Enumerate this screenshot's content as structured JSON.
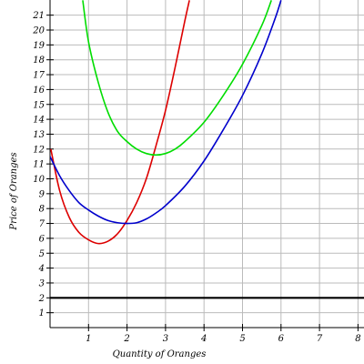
{
  "chart_data": {
    "type": "line",
    "title": "",
    "xlabel": "Quantity of Oranges",
    "ylabel": "Price of Oranges",
    "xlim": [
      0,
      8.1
    ],
    "ylim": [
      0,
      21.2
    ],
    "x_ticks": [
      1,
      2,
      3,
      4,
      5,
      6,
      7,
      8
    ],
    "y_ticks": [
      1,
      2,
      3,
      4,
      5,
      6,
      7,
      8,
      9,
      10,
      11,
      12,
      13,
      14,
      15,
      16,
      17,
      18,
      19,
      20,
      21
    ],
    "grid": true,
    "series": [
      {
        "color": "#dd0000",
        "points": [
          [
            0.02,
            12.0
          ],
          [
            0.25,
            9.2
          ],
          [
            0.5,
            7.4
          ],
          [
            0.75,
            6.4
          ],
          [
            1.0,
            5.9
          ],
          [
            1.25,
            5.65
          ],
          [
            1.5,
            5.8
          ],
          [
            1.75,
            6.3
          ],
          [
            2.0,
            7.2
          ],
          [
            2.25,
            8.4
          ],
          [
            2.5,
            10.0
          ],
          [
            2.75,
            12.2
          ],
          [
            3.0,
            14.6
          ],
          [
            3.25,
            17.5
          ],
          [
            3.5,
            20.6
          ],
          [
            3.62,
            22.0
          ]
        ]
      },
      {
        "color": "#0000cc",
        "points": [
          [
            0.0,
            11.5
          ],
          [
            0.25,
            10.2
          ],
          [
            0.5,
            9.2
          ],
          [
            0.75,
            8.4
          ],
          [
            1.0,
            7.9
          ],
          [
            1.25,
            7.5
          ],
          [
            1.5,
            7.2
          ],
          [
            1.75,
            7.05
          ],
          [
            2.0,
            7.0
          ],
          [
            2.25,
            7.05
          ],
          [
            2.5,
            7.3
          ],
          [
            2.75,
            7.7
          ],
          [
            3.0,
            8.2
          ],
          [
            3.5,
            9.5
          ],
          [
            4.0,
            11.2
          ],
          [
            4.5,
            13.3
          ],
          [
            5.0,
            15.6
          ],
          [
            5.5,
            18.4
          ],
          [
            5.85,
            20.8
          ],
          [
            6.0,
            22.0
          ]
        ]
      },
      {
        "color": "#00dd00",
        "points": [
          [
            0.85,
            22.0
          ],
          [
            1.0,
            19.2
          ],
          [
            1.25,
            16.5
          ],
          [
            1.5,
            14.5
          ],
          [
            1.75,
            13.2
          ],
          [
            2.0,
            12.5
          ],
          [
            2.25,
            12.0
          ],
          [
            2.5,
            11.7
          ],
          [
            2.75,
            11.6
          ],
          [
            3.0,
            11.7
          ],
          [
            3.25,
            12.0
          ],
          [
            3.5,
            12.5
          ],
          [
            4.0,
            13.8
          ],
          [
            4.5,
            15.6
          ],
          [
            5.0,
            17.7
          ],
          [
            5.5,
            20.3
          ],
          [
            5.75,
            22.0
          ]
        ]
      }
    ],
    "hline": {
      "y": 2,
      "color": "#000000"
    }
  }
}
